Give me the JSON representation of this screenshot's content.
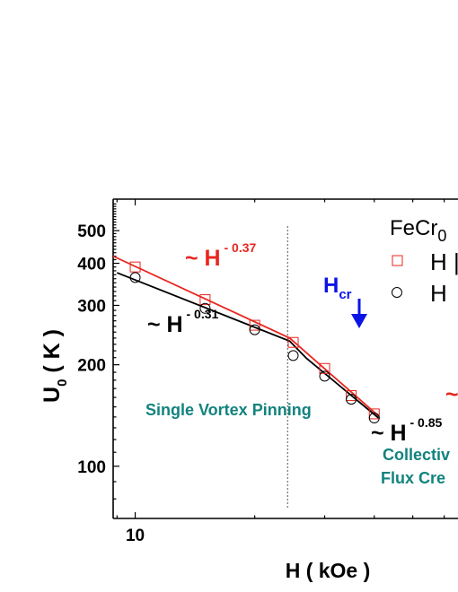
{
  "chart_data": {
    "type": "scatter",
    "x_scale": "log",
    "y_scale": "log",
    "xlabel": {
      "main": "H ( kOe )"
    },
    "ylabel": {
      "main": "U",
      "sub": "0",
      "tail": " ( K )"
    },
    "xlim": [
      8.8,
      65
    ],
    "ylim": [
      70,
      620
    ],
    "x_tick_labels": [
      {
        "value": 10,
        "label": "10"
      }
    ],
    "y_tick_labels": [
      {
        "value": 100,
        "label": "100"
      },
      {
        "value": 200,
        "label": "200"
      },
      {
        "value": 300,
        "label": "300"
      },
      {
        "value": 400,
        "label": "400"
      },
      {
        "value": 500,
        "label": "500"
      }
    ],
    "grid": false,
    "legend": {
      "placement": "top-right",
      "title": "FeCr",
      "title_sub": "0",
      "entries": [
        {
          "label": "H |",
          "marker": "square",
          "color": "#e8261f"
        },
        {
          "label": "H",
          "marker": "circle",
          "color": "#000000"
        }
      ]
    },
    "series": [
      {
        "marker": "square",
        "color": "#e8261f",
        "points": [
          {
            "x": 10,
            "y": 390
          },
          {
            "x": 15,
            "y": 312
          },
          {
            "x": 20,
            "y": 262
          },
          {
            "x": 25,
            "y": 233
          },
          {
            "x": 30,
            "y": 195
          },
          {
            "x": 35,
            "y": 162
          },
          {
            "x": 40,
            "y": 143
          }
        ]
      },
      {
        "marker": "circle",
        "color": "#000000",
        "points": [
          {
            "x": 10,
            "y": 363
          },
          {
            "x": 15,
            "y": 294
          },
          {
            "x": 20,
            "y": 254
          },
          {
            "x": 25,
            "y": 213
          },
          {
            "x": 30,
            "y": 185
          },
          {
            "x": 35,
            "y": 158
          },
          {
            "x": 40,
            "y": 139
          }
        ]
      }
    ],
    "fit_lines": [
      {
        "color": "#e8261f",
        "points": [
          {
            "x": 8.8,
            "y": 420
          },
          {
            "x": 24.5,
            "y": 240
          },
          {
            "x": 27.5,
            "y": 213
          },
          {
            "x": 41,
            "y": 141
          }
        ]
      },
      {
        "color": "#000000",
        "points": [
          {
            "x": 9.0,
            "y": 375
          },
          {
            "x": 24.5,
            "y": 235
          },
          {
            "x": 27.0,
            "y": 209
          },
          {
            "x": 41,
            "y": 139
          }
        ]
      }
    ],
    "vline": {
      "x": 24.2
    },
    "annotations": {
      "red_slope": {
        "prefix": "~ H",
        "exp": " - 0.37",
        "color": "#e8261f"
      },
      "black_slope": {
        "prefix": "~ H",
        "exp": " - 0.31",
        "color": "#000000"
      },
      "black_slope2": {
        "prefix": "~ H",
        "exp": " - 0.85",
        "color": "#000000"
      },
      "red_slope2": {
        "prefix": "~",
        "color": "#e8261f"
      },
      "hcr": {
        "main": "H",
        "sub": "cr",
        "color": "#0a14e6"
      },
      "region1": {
        "text": "Single Vortex Pinning",
        "color": "#12837e"
      },
      "region2_line1": {
        "text": "Collectiv",
        "color": "#12837e"
      },
      "region2_line2": {
        "text": "Flux Cre",
        "color": "#12837e"
      }
    }
  }
}
